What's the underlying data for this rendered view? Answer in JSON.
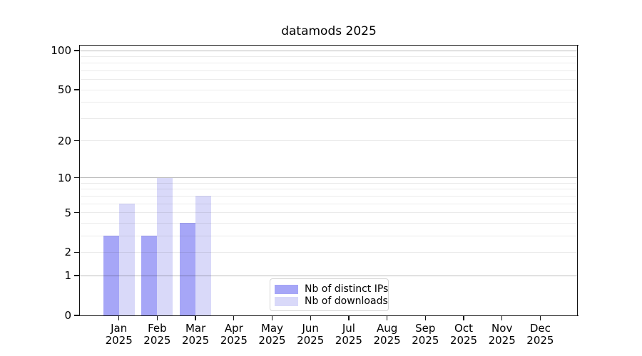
{
  "chart_data": {
    "type": "bar",
    "title": "datamods 2025",
    "categories": [
      "Jan",
      "Feb",
      "Mar",
      "Apr",
      "May",
      "Jun",
      "Jul",
      "Aug",
      "Sep",
      "Oct",
      "Nov",
      "Dec"
    ],
    "year_label": "2025",
    "series": [
      {
        "name": "Nb of distinct IPs",
        "color": "#a6a6f7",
        "values": [
          3,
          3,
          4,
          0,
          0,
          0,
          0,
          0,
          0,
          0,
          0,
          0
        ]
      },
      {
        "name": "Nb of downloads",
        "color": "#d9d9f9",
        "values": [
          6,
          10,
          7,
          0,
          0,
          0,
          0,
          0,
          0,
          0,
          0,
          0
        ]
      }
    ],
    "y_axis": {
      "scale": "symlog ln(1+x)",
      "tick_values": [
        0,
        1,
        2,
        5,
        10,
        20,
        50,
        100
      ],
      "major_gridlines": [
        1,
        10,
        100
      ],
      "minor_gridlines": [
        2,
        3,
        4,
        5,
        6,
        7,
        8,
        9,
        20,
        30,
        40,
        50,
        60,
        70,
        80,
        90
      ],
      "range_max_value": 100,
      "major_grid_color": "rgba(0,0,0,0.27)",
      "minor_grid_color": "rgba(0,0,0,0.08)"
    },
    "legend": {
      "position": "bottom-center-inside",
      "border_color": "#d4d4d4"
    },
    "colors": {
      "spine": "#111111",
      "text": "#000000",
      "background": "#ffffff"
    }
  }
}
